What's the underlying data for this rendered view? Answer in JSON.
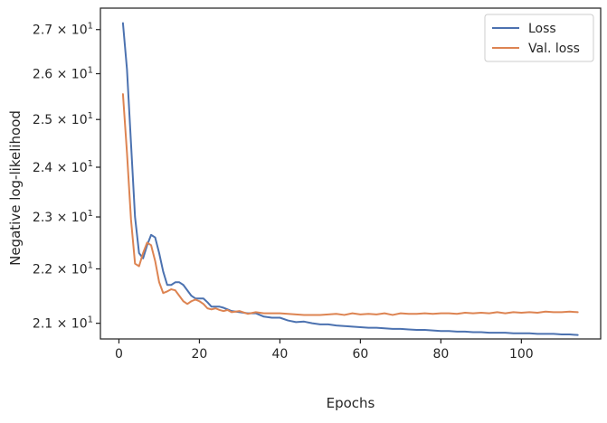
{
  "chart_data": {
    "type": "line",
    "xlabel": "Epochs",
    "ylabel": "Negative log-likelihood",
    "xlim": [
      -4.6,
      119.7
    ],
    "ylim": [
      20.72,
      27.5
    ],
    "yscale": "log",
    "grid": false,
    "legend_position": "top-right",
    "xticks": [
      {
        "value": 0,
        "label": "0"
      },
      {
        "value": 20,
        "label": "20"
      },
      {
        "value": 40,
        "label": "40"
      },
      {
        "value": 60,
        "label": "60"
      },
      {
        "value": 80,
        "label": "80"
      },
      {
        "value": 100,
        "label": "100"
      }
    ],
    "yticks": [
      {
        "value": 21,
        "mantissa": "2.1",
        "base": "10",
        "exponent": "1"
      },
      {
        "value": 22,
        "mantissa": "2.2",
        "base": "10",
        "exponent": "1"
      },
      {
        "value": 23,
        "mantissa": "2.3",
        "base": "10",
        "exponent": "1"
      },
      {
        "value": 24,
        "mantissa": "2.4",
        "base": "10",
        "exponent": "1"
      },
      {
        "value": 25,
        "mantissa": "2.5",
        "base": "10",
        "exponent": "1"
      },
      {
        "value": 26,
        "mantissa": "2.6",
        "base": "10",
        "exponent": "1"
      },
      {
        "value": 27,
        "mantissa": "2.7",
        "base": "10",
        "exponent": "1"
      }
    ],
    "series": [
      {
        "name": "Loss",
        "color": "#4c72b0",
        "x": [
          1,
          2,
          3,
          4,
          5,
          6,
          7,
          8,
          9,
          10,
          11,
          12,
          13,
          14,
          15,
          16,
          17,
          18,
          19,
          20,
          21,
          22,
          23,
          24,
          25,
          26,
          27,
          28,
          30,
          32,
          34,
          36,
          38,
          40,
          42,
          44,
          46,
          48,
          50,
          52,
          54,
          56,
          58,
          60,
          62,
          64,
          66,
          68,
          70,
          72,
          74,
          76,
          78,
          80,
          82,
          84,
          86,
          88,
          90,
          92,
          94,
          96,
          98,
          100,
          102,
          104,
          106,
          108,
          110,
          112,
          114
        ],
        "y": [
          27.15,
          26.1,
          24.5,
          23.0,
          22.3,
          22.2,
          22.45,
          22.65,
          22.6,
          22.3,
          21.95,
          21.7,
          21.7,
          21.75,
          21.75,
          21.7,
          21.6,
          21.5,
          21.45,
          21.45,
          21.45,
          21.38,
          21.3,
          21.3,
          21.3,
          21.28,
          21.25,
          21.22,
          21.2,
          21.18,
          21.18,
          21.12,
          21.1,
          21.1,
          21.05,
          21.02,
          21.03,
          21.0,
          20.98,
          20.98,
          20.96,
          20.95,
          20.94,
          20.93,
          20.92,
          20.92,
          20.91,
          20.9,
          20.9,
          20.89,
          20.88,
          20.88,
          20.87,
          20.86,
          20.86,
          20.85,
          20.85,
          20.84,
          20.84,
          20.83,
          20.83,
          20.83,
          20.82,
          20.82,
          20.82,
          20.81,
          20.81,
          20.81,
          20.8,
          20.8,
          20.79
        ]
      },
      {
        "name": "Val. loss",
        "color": "#dd8452",
        "x": [
          1,
          2,
          3,
          4,
          5,
          6,
          7,
          8,
          9,
          10,
          11,
          12,
          13,
          14,
          15,
          16,
          17,
          18,
          19,
          20,
          21,
          22,
          23,
          24,
          25,
          26,
          27,
          28,
          30,
          32,
          34,
          36,
          38,
          40,
          42,
          44,
          46,
          48,
          50,
          52,
          54,
          56,
          58,
          60,
          62,
          64,
          66,
          68,
          70,
          72,
          74,
          76,
          78,
          80,
          82,
          84,
          86,
          88,
          90,
          92,
          94,
          96,
          98,
          100,
          102,
          104,
          106,
          108,
          110,
          112,
          114
        ],
        "y": [
          25.55,
          24.3,
          22.95,
          22.1,
          22.05,
          22.3,
          22.5,
          22.45,
          22.15,
          21.75,
          21.55,
          21.58,
          21.62,
          21.6,
          21.5,
          21.4,
          21.35,
          21.4,
          21.43,
          21.4,
          21.35,
          21.27,
          21.25,
          21.27,
          21.24,
          21.22,
          21.24,
          21.2,
          21.22,
          21.17,
          21.2,
          21.18,
          21.18,
          21.18,
          21.17,
          21.16,
          21.15,
          21.15,
          21.15,
          21.16,
          21.17,
          21.15,
          21.18,
          21.16,
          21.17,
          21.16,
          21.18,
          21.15,
          21.18,
          21.17,
          21.17,
          21.18,
          21.17,
          21.18,
          21.18,
          21.17,
          21.19,
          21.18,
          21.19,
          21.18,
          21.2,
          21.18,
          21.2,
          21.19,
          21.2,
          21.19,
          21.21,
          21.2,
          21.2,
          21.21,
          21.2
        ]
      }
    ]
  }
}
